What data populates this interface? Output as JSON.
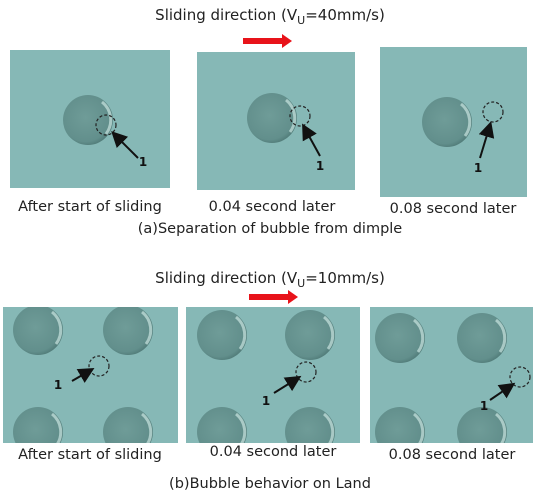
{
  "panels": [
    {
      "title": {
        "text": "Sliding direction (V",
        "subscript": "U",
        "suffix": "=40mm/s)"
      },
      "frames": [
        {
          "caption": "After start of sliding",
          "marker": "1"
        },
        {
          "caption": "0.04 second later",
          "marker": "1"
        },
        {
          "caption": "0.08 second later",
          "marker": "1"
        }
      ],
      "caption": "(a)Separation of bubble from dimple"
    },
    {
      "title": {
        "text": "Sliding direction (V",
        "subscript": "U",
        "suffix": "=10mm/s)"
      },
      "frames": [
        {
          "caption": "After start of sliding",
          "marker": "1"
        },
        {
          "caption": "0.04 second later",
          "marker": "1"
        },
        {
          "caption": "0.08 second later",
          "marker": "1"
        }
      ],
      "caption": "(b)Bubble behavior on Land"
    }
  ]
}
